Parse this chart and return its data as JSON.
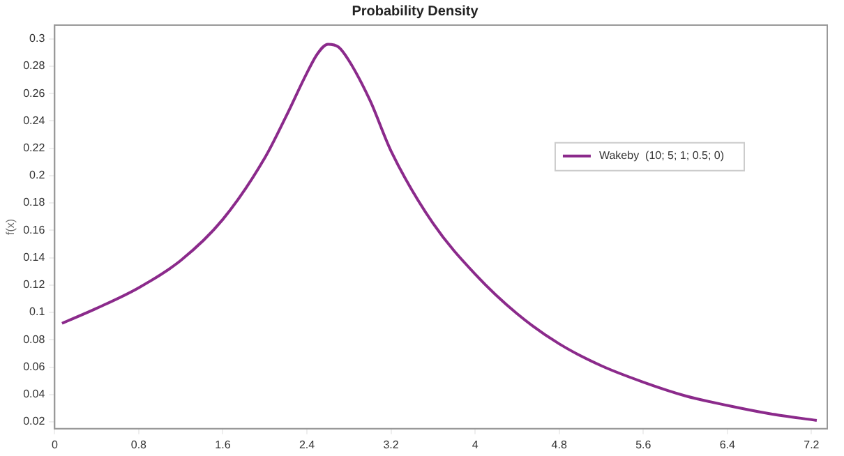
{
  "chart_data": {
    "type": "line",
    "title": "Probability Density",
    "ylabel": "f(x)",
    "x": [
      0.07,
      0.4,
      0.8,
      1.2,
      1.6,
      2.0,
      2.2,
      2.4,
      2.5,
      2.6,
      2.7,
      2.8,
      3.0,
      3.2,
      3.6,
      4.0,
      4.4,
      4.8,
      5.2,
      5.6,
      6.0,
      6.4,
      6.8,
      7.25
    ],
    "series": [
      {
        "name": "Wakeby  (10; 5; 1; 0.5; 0)",
        "color": "#8b2a8b",
        "values": [
          0.092,
          0.103,
          0.118,
          0.138,
          0.168,
          0.213,
          0.243,
          0.275,
          0.289,
          0.296,
          0.294,
          0.284,
          0.255,
          0.218,
          0.165,
          0.128,
          0.099,
          0.077,
          0.061,
          0.049,
          0.039,
          0.032,
          0.026,
          0.021
        ]
      }
    ],
    "xlim": [
      0,
      7.35
    ],
    "xticks": [
      0,
      0.8,
      1.6,
      2.4,
      3.2,
      4,
      4.8,
      5.6,
      6.4,
      7.2
    ],
    "ylim": [
      0.015,
      0.31
    ],
    "yticks": [
      0.02,
      0.04,
      0.06,
      0.08,
      0.1,
      0.12,
      0.14,
      0.16,
      0.18,
      0.2,
      0.22,
      0.24,
      0.26,
      0.28,
      0.3
    ],
    "grid": false,
    "legend": "right",
    "marker": "none",
    "line_style": "solid"
  }
}
